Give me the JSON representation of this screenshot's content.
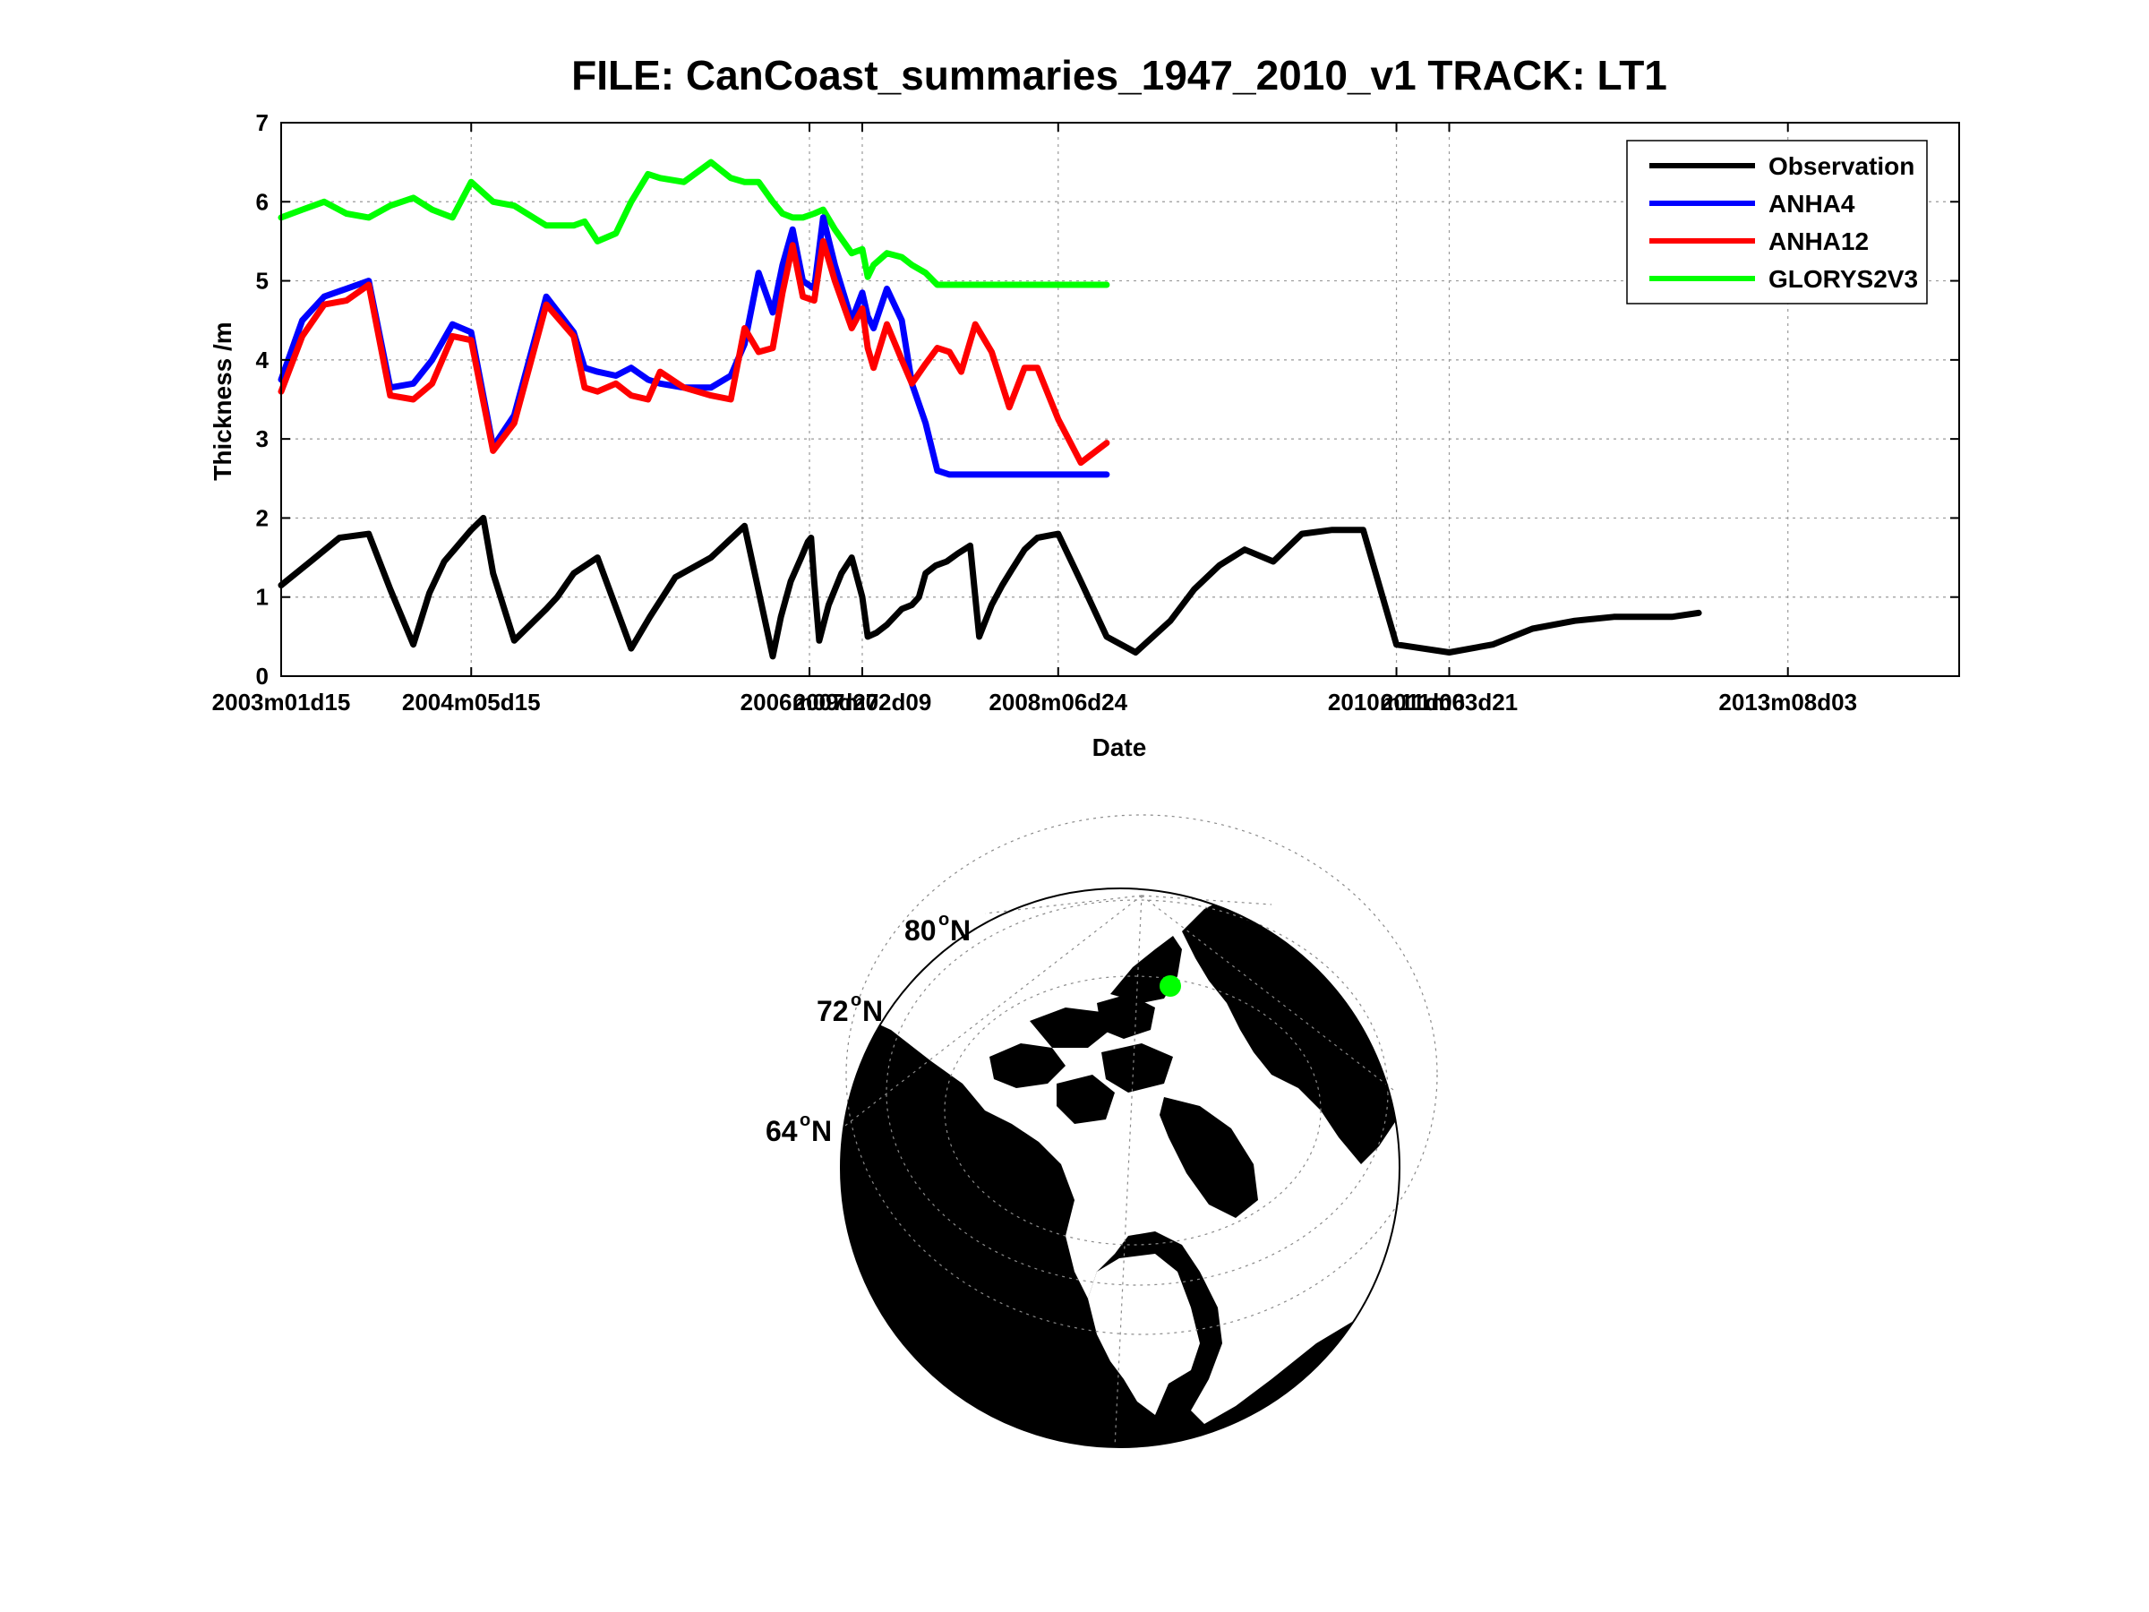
{
  "chart_data": {
    "type": "line",
    "title": "FILE: CanCoast_summaries_1947_2010_v1 TRACK: LT1",
    "xlabel": "Date",
    "ylabel": "Thickness /m",
    "ylim": [
      0,
      7
    ],
    "yticks": [
      "0",
      "1",
      "2",
      "3",
      "4",
      "5",
      "6",
      "7"
    ],
    "xlim": [
      "2003-01-15",
      "2014-10-15"
    ],
    "xticks": [
      {
        "date": "2003-01-15",
        "label": "2003m01d15"
      },
      {
        "date": "2004-05-15",
        "label": "2004m05d15"
      },
      {
        "date": "2006-09-27",
        "label": "2006m09d27"
      },
      {
        "date": "2007-02-09",
        "label": "2007m02d09"
      },
      {
        "date": "2008-06-24",
        "label": "2008m06d24"
      },
      {
        "date": "2010-11-06",
        "label": "2010m11d06"
      },
      {
        "date": "2011-03-21",
        "label": "2011m03d21"
      },
      {
        "date": "2013-08-03",
        "label": "2013m08d03"
      }
    ],
    "grid": true,
    "legend_position": "top-right",
    "series": [
      {
        "name": "Observation",
        "color": "#000000",
        "x": [
          "2003-01-15",
          "2003-03-31",
          "2003-06-13",
          "2003-08-27",
          "2003-10-21",
          "2003-12-19",
          "2004-01-29",
          "2004-03-07",
          "2004-05-15",
          "2004-06-15",
          "2004-07-10",
          "2004-09-02",
          "2004-11-23",
          "2004-12-21",
          "2005-02-01",
          "2005-04-03",
          "2005-06-28",
          "2005-08-15",
          "2005-10-19",
          "2006-01-18",
          "2006-04-14",
          "2006-06-25",
          "2006-07-16",
          "2006-08-10",
          "2006-09-06",
          "2006-09-23",
          "2006-10-01",
          "2006-10-09",
          "2006-10-22",
          "2006-11-15",
          "2006-12-18",
          "2007-01-13",
          "2007-02-09",
          "2007-02-23",
          "2007-03-18",
          "2007-04-13",
          "2007-05-21",
          "2007-06-16",
          "2007-07-04",
          "2007-07-21",
          "2007-08-16",
          "2007-09-13",
          "2007-10-11",
          "2007-11-12",
          "2007-12-05",
          "2008-01-06",
          "2008-02-02",
          "2008-02-27",
          "2008-03-30",
          "2008-05-02",
          "2008-06-24",
          "2008-08-21",
          "2008-10-26",
          "2009-01-08",
          "2009-04-07",
          "2009-06-07",
          "2009-08-10",
          "2009-10-14",
          "2009-12-26",
          "2010-03-09",
          "2010-05-26",
          "2010-08-13",
          "2010-11-06",
          "2011-03-21",
          "2011-07-10",
          "2011-10-20",
          "2012-02-05",
          "2012-05-15",
          "2012-08-30",
          "2012-10-10",
          "2012-12-18"
        ],
        "y": [
          1.15,
          1.45,
          1.75,
          1.8,
          1.1,
          0.4,
          1.05,
          1.45,
          1.85,
          2.0,
          1.3,
          0.45,
          0.85,
          1.0,
          1.3,
          1.5,
          0.35,
          0.75,
          1.25,
          1.5,
          1.9,
          0.25,
          0.75,
          1.2,
          1.5,
          1.7,
          1.75,
          1.2,
          0.45,
          0.9,
          1.3,
          1.5,
          1.0,
          0.5,
          0.55,
          0.65,
          0.85,
          0.9,
          1.0,
          1.3,
          1.4,
          1.45,
          1.55,
          1.65,
          0.5,
          0.9,
          1.15,
          1.35,
          1.6,
          1.75,
          1.8,
          1.2,
          0.5,
          0.3,
          0.7,
          1.1,
          1.4,
          1.6,
          1.45,
          1.8,
          1.85,
          1.85,
          0.4,
          0.3,
          0.4,
          0.6,
          0.7,
          0.75,
          0.75,
          0.75,
          0.8
        ]
      },
      {
        "name": "ANHA4",
        "color": "#0000ff",
        "x": [
          "2003-01-15",
          "2003-03-10",
          "2003-05-05",
          "2003-07-01",
          "2003-08-27",
          "2003-10-21",
          "2003-12-19",
          "2004-02-05",
          "2004-03-28",
          "2004-05-15",
          "2004-07-10",
          "2004-09-02",
          "2004-11-23",
          "2005-02-01",
          "2005-03-01",
          "2005-04-03",
          "2005-05-20",
          "2005-06-28",
          "2005-08-10",
          "2005-09-10",
          "2005-11-10",
          "2006-01-18",
          "2006-03-10",
          "2006-04-14",
          "2006-05-20",
          "2006-06-25",
          "2006-07-20",
          "2006-08-15",
          "2006-09-10",
          "2006-10-09",
          "2006-11-01",
          "2006-12-01",
          "2007-01-13",
          "2007-02-09",
          "2007-02-23",
          "2007-03-10",
          "2007-04-13",
          "2007-05-21",
          "2007-06-16",
          "2007-07-21",
          "2007-08-20",
          "2007-09-20",
          "2007-10-20",
          "2007-11-25",
          "2008-01-06",
          "2008-02-20",
          "2008-03-30",
          "2008-05-02",
          "2008-06-24",
          "2008-08-21",
          "2008-10-26"
        ],
        "y": [
          3.75,
          4.5,
          4.8,
          4.9,
          5.0,
          3.65,
          3.7,
          4.0,
          4.45,
          4.35,
          2.9,
          3.3,
          4.8,
          4.35,
          3.9,
          3.85,
          3.8,
          3.9,
          3.75,
          3.7,
          3.65,
          3.65,
          3.8,
          4.2,
          5.1,
          4.6,
          5.2,
          5.65,
          5.0,
          4.9,
          5.8,
          5.2,
          4.5,
          4.85,
          4.55,
          4.4,
          4.9,
          4.5,
          3.7,
          3.2,
          2.6,
          2.55,
          2.55,
          2.55,
          2.55,
          2.55,
          2.55,
          2.55,
          2.55,
          2.55,
          2.55
        ]
      },
      {
        "name": "ANHA12",
        "color": "#ff0000",
        "x": [
          "2003-01-15",
          "2003-03-10",
          "2003-05-05",
          "2003-07-01",
          "2003-08-27",
          "2003-10-21",
          "2003-12-19",
          "2004-02-05",
          "2004-03-28",
          "2004-05-15",
          "2004-07-10",
          "2004-09-02",
          "2004-11-23",
          "2005-02-01",
          "2005-03-01",
          "2005-04-03",
          "2005-05-20",
          "2005-06-28",
          "2005-08-10",
          "2005-09-10",
          "2005-11-10",
          "2006-01-18",
          "2006-03-10",
          "2006-04-14",
          "2006-05-20",
          "2006-06-25",
          "2006-07-20",
          "2006-08-15",
          "2006-09-10",
          "2006-10-09",
          "2006-11-01",
          "2006-12-01",
          "2007-01-13",
          "2007-02-09",
          "2007-02-23",
          "2007-03-10",
          "2007-04-13",
          "2007-05-21",
          "2007-06-16",
          "2007-07-21",
          "2007-08-20",
          "2007-09-20",
          "2007-10-20",
          "2007-11-25",
          "2008-01-06",
          "2008-02-20",
          "2008-03-30",
          "2008-05-02",
          "2008-06-24",
          "2008-08-21",
          "2008-10-26"
        ],
        "y": [
          3.6,
          4.3,
          4.7,
          4.75,
          4.95,
          3.55,
          3.5,
          3.7,
          4.3,
          4.25,
          2.85,
          3.2,
          4.7,
          4.3,
          3.65,
          3.6,
          3.7,
          3.55,
          3.5,
          3.85,
          3.65,
          3.55,
          3.5,
          4.4,
          4.1,
          4.15,
          4.85,
          5.45,
          4.8,
          4.75,
          5.5,
          5.0,
          4.4,
          4.65,
          4.15,
          3.9,
          4.45,
          4.0,
          3.7,
          3.95,
          4.15,
          4.1,
          3.85,
          4.45,
          4.1,
          3.4,
          3.9,
          3.9,
          3.25,
          2.7,
          2.95
        ]
      },
      {
        "name": "GLORYS2V3",
        "color": "#00ff00",
        "x": [
          "2003-01-15",
          "2003-03-10",
          "2003-05-05",
          "2003-07-01",
          "2003-08-27",
          "2003-10-21",
          "2003-12-19",
          "2004-02-05",
          "2004-03-28",
          "2004-05-15",
          "2004-07-10",
          "2004-09-02",
          "2004-11-23",
          "2005-02-01",
          "2005-03-01",
          "2005-04-03",
          "2005-05-20",
          "2005-06-28",
          "2005-08-10",
          "2005-09-10",
          "2005-11-10",
          "2006-01-18",
          "2006-03-10",
          "2006-04-14",
          "2006-05-20",
          "2006-06-25",
          "2006-07-20",
          "2006-08-15",
          "2006-09-10",
          "2006-10-09",
          "2006-11-01",
          "2006-12-01",
          "2007-01-13",
          "2007-02-09",
          "2007-02-23",
          "2007-03-10",
          "2007-04-13",
          "2007-05-21",
          "2007-06-16",
          "2007-07-21",
          "2007-08-20",
          "2007-09-20",
          "2007-10-20",
          "2007-11-25",
          "2008-01-06",
          "2008-02-20",
          "2008-03-30",
          "2008-05-02",
          "2008-06-24",
          "2008-08-21",
          "2008-10-26"
        ],
        "y": [
          5.8,
          5.9,
          6.0,
          5.85,
          5.8,
          5.95,
          6.05,
          5.9,
          5.8,
          6.25,
          6.0,
          5.95,
          5.7,
          5.7,
          5.75,
          5.5,
          5.6,
          6.0,
          6.35,
          6.3,
          6.25,
          6.5,
          6.3,
          6.25,
          6.25,
          6.0,
          5.85,
          5.8,
          5.8,
          5.85,
          5.9,
          5.65,
          5.35,
          5.4,
          5.05,
          5.2,
          5.35,
          5.3,
          5.2,
          5.1,
          4.95,
          4.95,
          4.95,
          4.95,
          4.95,
          4.95,
          4.95,
          4.95,
          4.95,
          4.95,
          4.95
        ]
      }
    ]
  },
  "map": {
    "lat_labels": [
      {
        "deg": "80",
        "sup": "o",
        "hemi": "N"
      },
      {
        "deg": "72",
        "sup": "o",
        "hemi": "N"
      },
      {
        "deg": "64",
        "sup": "o",
        "hemi": "N"
      }
    ],
    "marker_color": "#00ff00",
    "land_color": "#000000",
    "ocean_color": "#ffffff"
  }
}
